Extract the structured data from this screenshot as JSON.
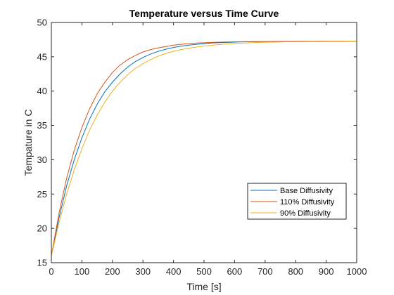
{
  "chart_data": {
    "type": "line",
    "title": "Temperature versus Time Curve",
    "xlabel": "Time [s]",
    "ylabel": "Tempature in C",
    "xlim": [
      0,
      1000
    ],
    "ylim": [
      15,
      50
    ],
    "xticks": [
      0,
      100,
      200,
      300,
      400,
      500,
      600,
      700,
      800,
      900,
      1000
    ],
    "yticks": [
      15,
      20,
      25,
      30,
      35,
      40,
      45,
      50
    ],
    "grid": false,
    "legend_position": "lower-right",
    "x": [
      0,
      25,
      50,
      75,
      100,
      125,
      150,
      175,
      200,
      225,
      250,
      275,
      300,
      325,
      350,
      375,
      400,
      425,
      450,
      475,
      500,
      525,
      550,
      575,
      600,
      625,
      650,
      675,
      700,
      725,
      750,
      775,
      800,
      825,
      850,
      875,
      900,
      925,
      950,
      975,
      1000
    ],
    "series": [
      {
        "name": "Base Diffusivity",
        "color": "#0072BD",
        "values": [
          16.0,
          21.5,
          26.2,
          30.0,
          33.2,
          35.9,
          38.1,
          39.9,
          41.3,
          42.5,
          43.5,
          44.3,
          44.9,
          45.4,
          45.8,
          46.1,
          46.35,
          46.55,
          46.7,
          46.82,
          46.92,
          47.0,
          47.06,
          47.1,
          47.14,
          47.17,
          47.19,
          47.21,
          47.22,
          47.23,
          47.24,
          47.25,
          47.25,
          47.26,
          47.26,
          47.26,
          47.27,
          47.27,
          47.27,
          47.27,
          47.27
        ]
      },
      {
        "name": "110% Diffusivity",
        "color": "#D95319",
        "values": [
          16.0,
          22.2,
          27.3,
          31.4,
          34.7,
          37.4,
          39.6,
          41.3,
          42.7,
          43.8,
          44.6,
          45.2,
          45.7,
          46.05,
          46.3,
          46.5,
          46.7,
          46.82,
          46.92,
          47.0,
          47.05,
          47.1,
          47.13,
          47.16,
          47.18,
          47.2,
          47.21,
          47.22,
          47.23,
          47.24,
          47.25,
          47.25,
          47.26,
          47.26,
          47.26,
          47.27,
          47.27,
          47.27,
          47.27,
          47.27,
          47.27
        ]
      },
      {
        "name": "90% Diffusivity",
        "color": "#EDB120",
        "values": [
          16.0,
          20.8,
          25.0,
          28.5,
          31.6,
          34.3,
          36.5,
          38.4,
          40.0,
          41.3,
          42.4,
          43.3,
          44.0,
          44.6,
          45.1,
          45.5,
          45.8,
          46.05,
          46.25,
          46.42,
          46.56,
          46.68,
          46.78,
          46.86,
          46.93,
          46.99,
          47.04,
          47.08,
          47.11,
          47.14,
          47.16,
          47.18,
          47.2,
          47.21,
          47.22,
          47.23,
          47.24,
          47.25,
          47.25,
          47.26,
          47.26
        ]
      }
    ]
  }
}
